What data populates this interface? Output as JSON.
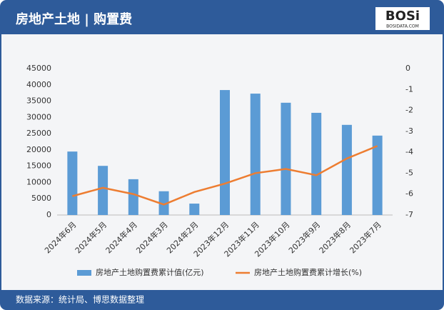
{
  "header": {
    "title": "房地产土地 | 购置费",
    "logo": "BOSi",
    "logo_sub": "BOSIDATA.COM"
  },
  "chart_data": {
    "type": "bar",
    "categories": [
      "2024年6月",
      "2024年5月",
      "2024年4月",
      "2024年3月",
      "2024年2月",
      "2023年12月",
      "2023年11月",
      "2023年10月",
      "2023年9月",
      "2023年8月",
      "2023年7月"
    ],
    "series": [
      {
        "name": "房地产土地购置费累计值(亿元)",
        "type": "bar",
        "color": "#5b9bd5",
        "values": [
          19500,
          15100,
          11000,
          7300,
          3500,
          38400,
          37300,
          34500,
          31400,
          27700,
          24400
        ]
      },
      {
        "name": "房地产土地购置费累计增长(%)",
        "type": "line",
        "axis": "y2",
        "color": "#ed7d31",
        "values": [
          -6.1,
          -5.7,
          -6.0,
          -6.5,
          -5.9,
          -5.5,
          -5.0,
          -4.8,
          -5.1,
          -4.3,
          -3.7
        ]
      }
    ],
    "ylim": [
      0,
      45000
    ],
    "yticks": [
      0,
      5000,
      10000,
      15000,
      20000,
      25000,
      30000,
      35000,
      40000,
      45000
    ],
    "y2lim": [
      -7,
      0
    ],
    "y2ticks": [
      0,
      -1,
      -2,
      -3,
      -4,
      -5,
      -6,
      -7
    ],
    "legend": "bottom"
  },
  "footer": {
    "source": "数据来源：统计局、博思数据整理"
  }
}
